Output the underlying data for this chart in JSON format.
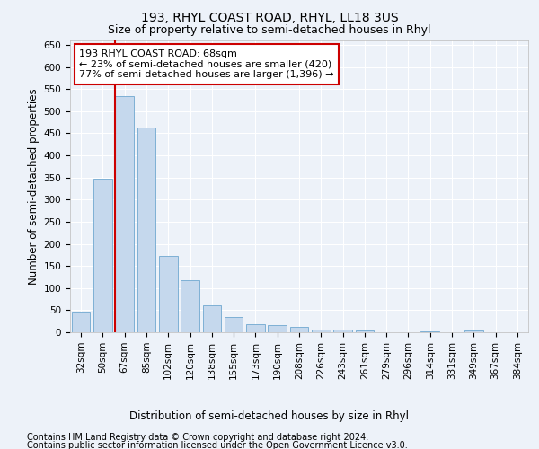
{
  "title": "193, RHYL COAST ROAD, RHYL, LL18 3US",
  "subtitle": "Size of property relative to semi-detached houses in Rhyl",
  "xlabel": "Distribution of semi-detached houses by size in Rhyl",
  "ylabel": "Number of semi-detached properties",
  "footnote1": "Contains HM Land Registry data © Crown copyright and database right 2024.",
  "footnote2": "Contains public sector information licensed under the Open Government Licence v3.0.",
  "bar_labels": [
    "32sqm",
    "50sqm",
    "67sqm",
    "85sqm",
    "102sqm",
    "120sqm",
    "138sqm",
    "155sqm",
    "173sqm",
    "190sqm",
    "208sqm",
    "226sqm",
    "243sqm",
    "261sqm",
    "279sqm",
    "296sqm",
    "314sqm",
    "331sqm",
    "349sqm",
    "367sqm",
    "384sqm"
  ],
  "bar_values": [
    47,
    348,
    535,
    463,
    173,
    117,
    60,
    35,
    18,
    16,
    12,
    7,
    7,
    5,
    0,
    0,
    3,
    0,
    4,
    0,
    0
  ],
  "bar_color": "#c5d8ed",
  "bar_edgecolor": "#6fa8d0",
  "subject_bar_index": 2,
  "red_line_color": "#cc0000",
  "annotation_text": "193 RHYL COAST ROAD: 68sqm\n← 23% of semi-detached houses are smaller (420)\n77% of semi-detached houses are larger (1,396) →",
  "annotation_box_color": "#ffffff",
  "annotation_box_edgecolor": "#cc0000",
  "ylim": [
    0,
    660
  ],
  "background_color": "#edf2f9",
  "grid_color": "#ffffff",
  "title_fontsize": 10,
  "subtitle_fontsize": 9,
  "axis_label_fontsize": 8.5,
  "tick_fontsize": 7.5,
  "annotation_fontsize": 8,
  "footnote_fontsize": 7
}
